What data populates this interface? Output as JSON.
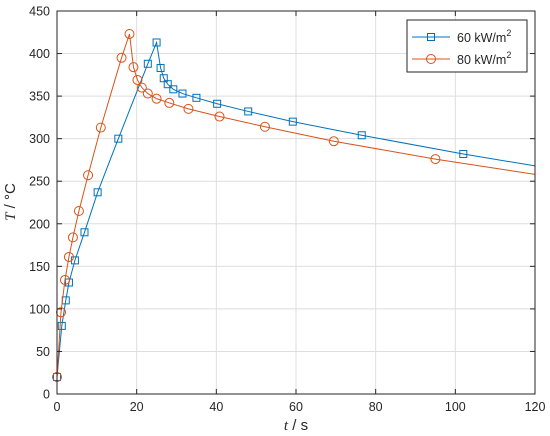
{
  "chart_data": {
    "type": "line",
    "xlabel": {
      "var": "t",
      "unit": "s"
    },
    "ylabel": {
      "var": "T",
      "unit": "°C"
    },
    "xlim": [
      0,
      120
    ],
    "ylim": [
      0,
      450
    ],
    "xticks": [
      0,
      20,
      40,
      60,
      80,
      100,
      120
    ],
    "yticks": [
      0,
      50,
      100,
      150,
      200,
      250,
      300,
      350,
      400,
      450
    ],
    "grid": true,
    "legend_position": "top-right",
    "series": [
      {
        "name": "60 kW/m",
        "name_sup": "2",
        "color": "#0072BD",
        "marker": "square",
        "x": [
          0,
          1.2,
          2.2,
          3.0,
          4.5,
          6.9,
          10.2,
          15.4,
          22.8,
          25.0,
          26.0,
          26.8,
          27.8,
          29.2,
          31.5,
          35.0,
          40.2,
          48.0,
          59.2,
          76.5,
          102.0,
          120.0
        ],
        "y": [
          20,
          80,
          110,
          131,
          157,
          190,
          237,
          300,
          388,
          413,
          383,
          371,
          364,
          358,
          353,
          348,
          341,
          332,
          320,
          304,
          282,
          268
        ],
        "marker_indices": [
          0,
          1,
          2,
          3,
          4,
          5,
          6,
          7,
          8,
          9,
          10,
          11,
          12,
          13,
          14,
          15,
          16,
          17,
          18,
          19,
          20
        ]
      },
      {
        "name": "80 kW/m",
        "name_sup": "2",
        "color": "#D95319",
        "marker": "circle",
        "x": [
          0,
          1.0,
          2.0,
          3.0,
          4.0,
          5.5,
          7.8,
          11.0,
          16.2,
          18.2,
          19.2,
          20.2,
          21.3,
          22.8,
          25.0,
          28.2,
          33.0,
          40.8,
          52.2,
          69.5,
          95.0,
          120.0
        ],
        "y": [
          20,
          96,
          134,
          161,
          184,
          215,
          257,
          313,
          395,
          423,
          384,
          369,
          360,
          353,
          347,
          342,
          335,
          326,
          314,
          297,
          276,
          258
        ],
        "marker_indices": [
          0,
          1,
          2,
          3,
          4,
          5,
          6,
          7,
          8,
          9,
          10,
          11,
          12,
          13,
          14,
          15,
          16,
          17,
          18,
          19,
          20
        ]
      }
    ]
  }
}
